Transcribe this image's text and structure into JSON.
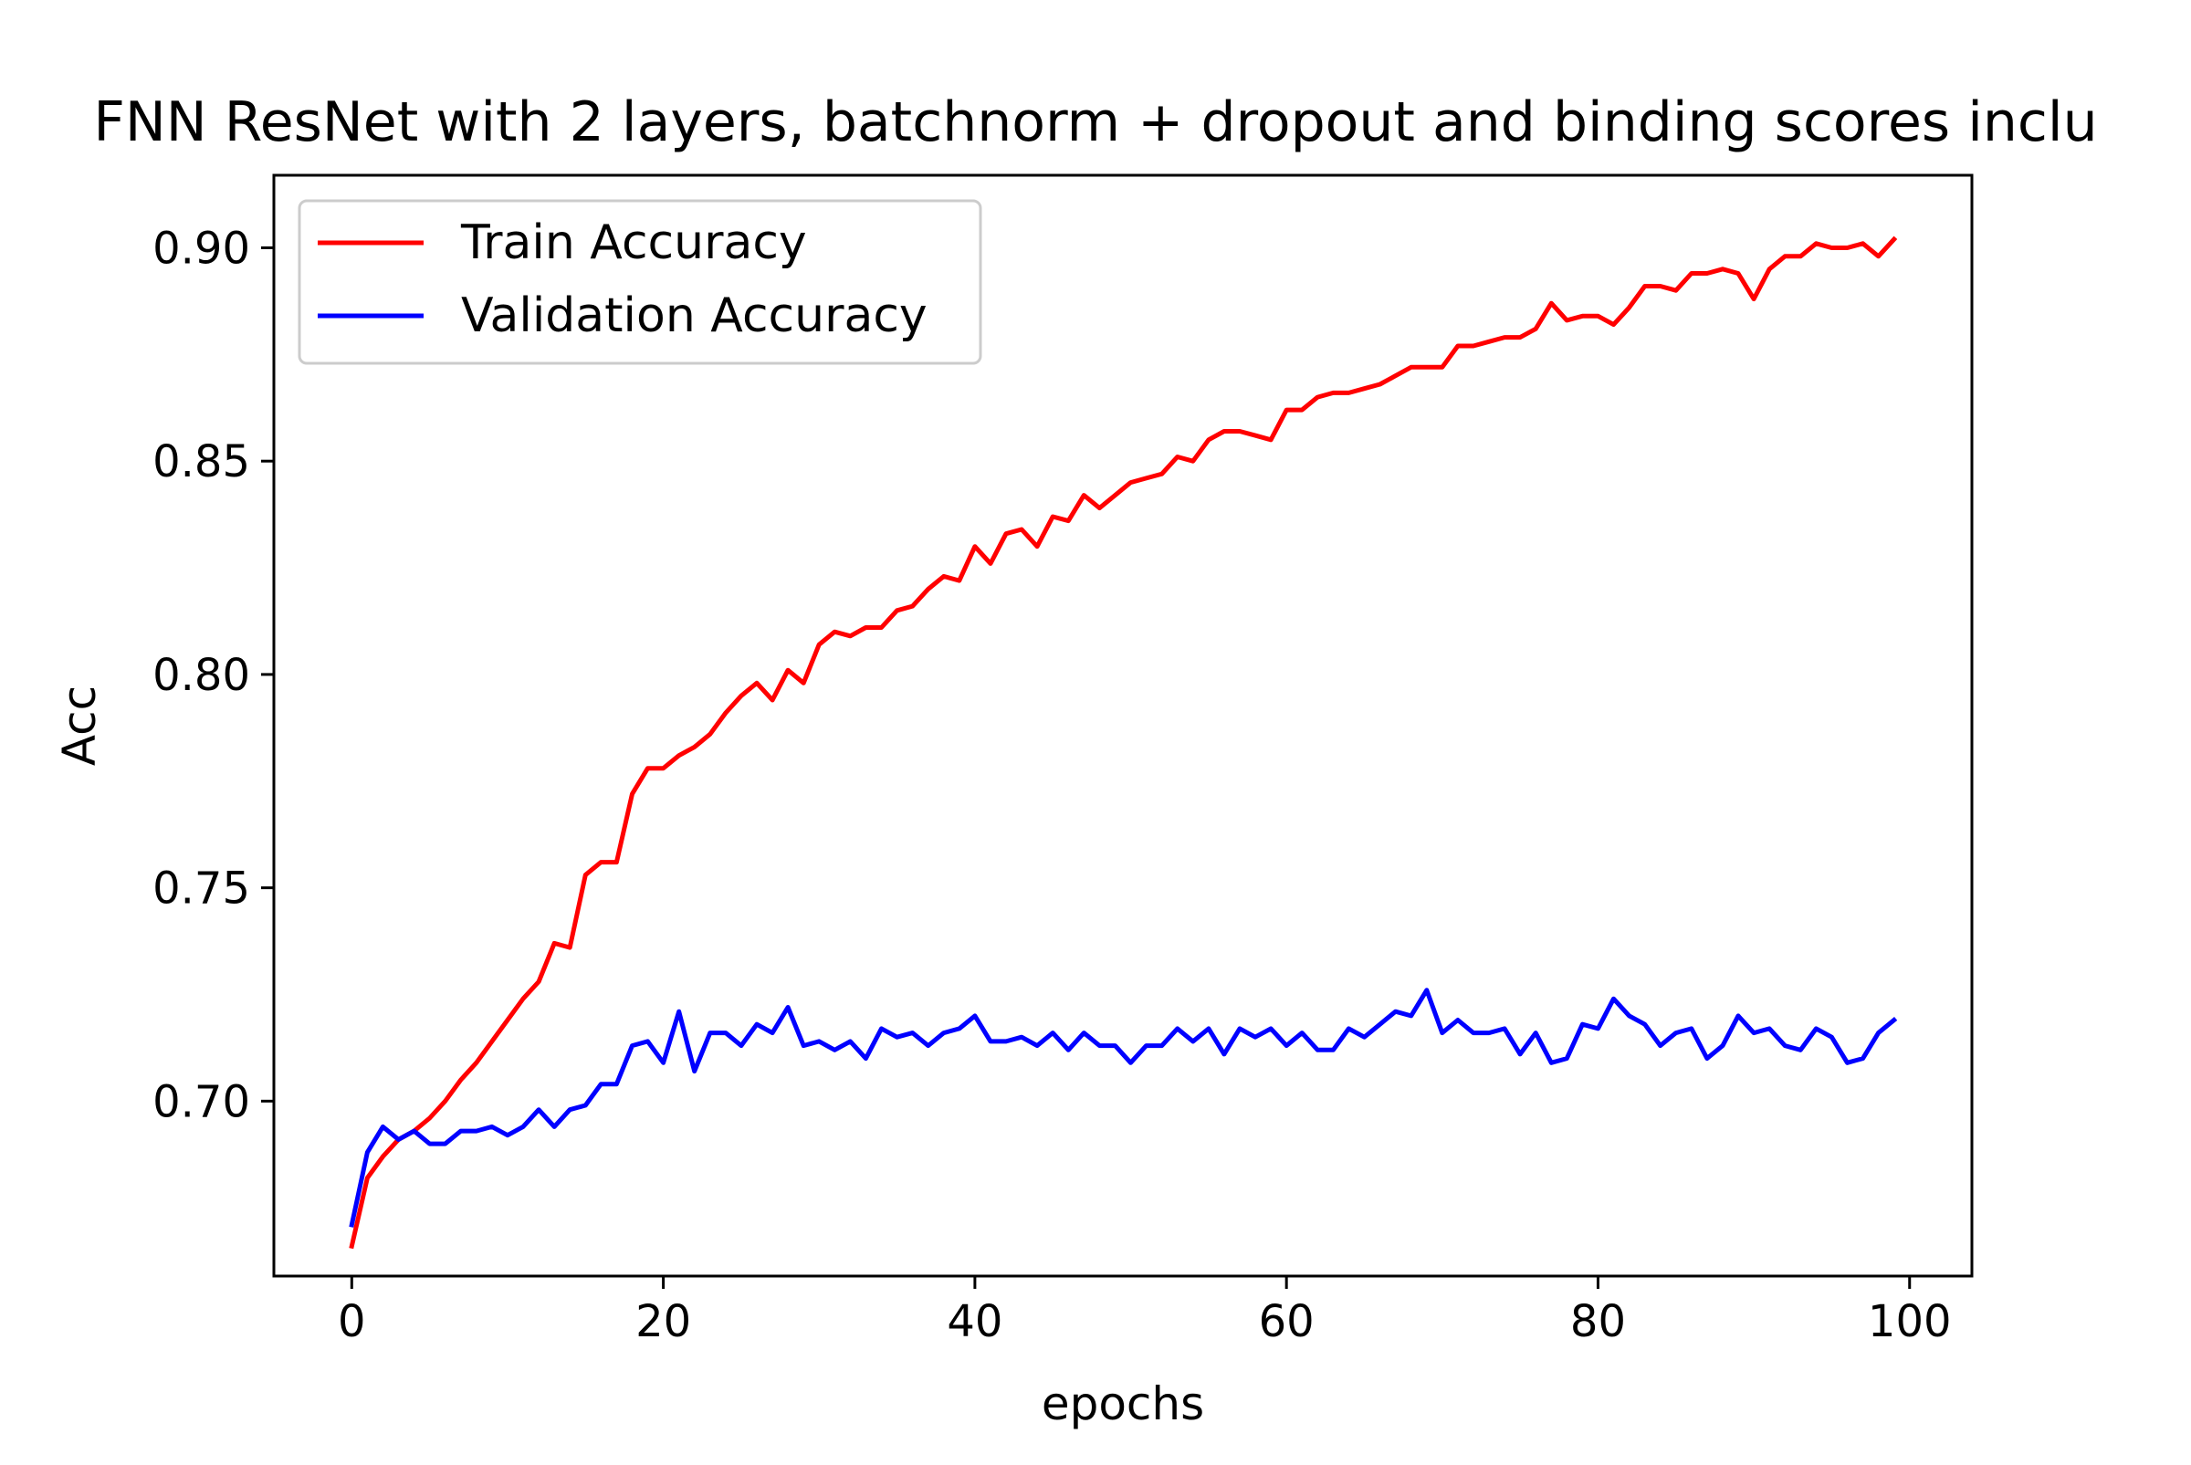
{
  "chart_data": {
    "type": "line",
    "title": "FNN ResNet with 2 layers, batchnorm + dropout and binding scores inclu",
    "xlabel": "epochs",
    "ylabel": "Acc",
    "xlim": [
      -5,
      104
    ],
    "ylim": [
      0.659,
      0.917
    ],
    "xticks": [
      0,
      20,
      40,
      60,
      80,
      100
    ],
    "xtick_labels": [
      "0",
      "20",
      "40",
      "60",
      "80",
      "100"
    ],
    "yticks": [
      0.7,
      0.75,
      0.8,
      0.85,
      0.9
    ],
    "ytick_labels": [
      "0.70",
      "0.75",
      "0.80",
      "0.85",
      "0.90"
    ],
    "grid": false,
    "legend_position": "top-left",
    "x": [
      0,
      1,
      2,
      3,
      4,
      5,
      6,
      7,
      8,
      9,
      10,
      11,
      12,
      13,
      14,
      15,
      16,
      17,
      18,
      19,
      20,
      21,
      22,
      23,
      24,
      25,
      26,
      27,
      28,
      29,
      30,
      31,
      32,
      33,
      34,
      35,
      36,
      37,
      38,
      39,
      40,
      41,
      42,
      43,
      44,
      45,
      46,
      47,
      48,
      49,
      50,
      51,
      52,
      53,
      54,
      55,
      56,
      57,
      58,
      59,
      60,
      61,
      62,
      63,
      64,
      65,
      66,
      67,
      68,
      69,
      70,
      71,
      72,
      73,
      74,
      75,
      76,
      77,
      78,
      79,
      80,
      81,
      82,
      83,
      84,
      85,
      86,
      87,
      88,
      89,
      90,
      91,
      92,
      93,
      94,
      95,
      96,
      97,
      98,
      99
    ],
    "series": [
      {
        "name": "Train Accuracy",
        "color": "#ff0000",
        "values": [
          0.666,
          0.682,
          0.687,
          0.691,
          0.693,
          0.696,
          0.7,
          0.705,
          0.709,
          0.714,
          0.719,
          0.724,
          0.728,
          0.737,
          0.736,
          0.753,
          0.756,
          0.756,
          0.772,
          0.778,
          0.778,
          0.781,
          0.783,
          0.786,
          0.791,
          0.795,
          0.798,
          0.794,
          0.801,
          0.798,
          0.807,
          0.81,
          0.809,
          0.811,
          0.811,
          0.815,
          0.816,
          0.82,
          0.823,
          0.822,
          0.83,
          0.826,
          0.833,
          0.834,
          0.83,
          0.837,
          0.836,
          0.842,
          0.839,
          0.842,
          0.845,
          0.846,
          0.847,
          0.851,
          0.85,
          0.855,
          0.857,
          0.857,
          0.856,
          0.855,
          0.862,
          0.862,
          0.865,
          0.866,
          0.866,
          0.867,
          0.868,
          0.87,
          0.872,
          0.872,
          0.872,
          0.877,
          0.877,
          0.878,
          0.879,
          0.879,
          0.881,
          0.887,
          0.883,
          0.884,
          0.884,
          0.882,
          0.886,
          0.891,
          0.891,
          0.89,
          0.894,
          0.894,
          0.895,
          0.894,
          0.888,
          0.895,
          0.898,
          0.898,
          0.901,
          0.9,
          0.9,
          0.901,
          0.898,
          0.902
        ]
      },
      {
        "name": "Validation Accuracy",
        "color": "#0000ff",
        "values": [
          0.671,
          0.688,
          0.694,
          0.691,
          0.693,
          0.69,
          0.69,
          0.693,
          0.693,
          0.694,
          0.692,
          0.694,
          0.698,
          0.694,
          0.698,
          0.699,
          0.704,
          0.704,
          0.713,
          0.714,
          0.709,
          0.721,
          0.707,
          0.716,
          0.716,
          0.713,
          0.718,
          0.716,
          0.722,
          0.713,
          0.714,
          0.712,
          0.714,
          0.71,
          0.717,
          0.715,
          0.716,
          0.713,
          0.716,
          0.717,
          0.72,
          0.714,
          0.714,
          0.715,
          0.713,
          0.716,
          0.712,
          0.716,
          0.713,
          0.713,
          0.709,
          0.713,
          0.713,
          0.717,
          0.714,
          0.717,
          0.711,
          0.717,
          0.715,
          0.717,
          0.713,
          0.716,
          0.712,
          0.712,
          0.717,
          0.715,
          0.718,
          0.721,
          0.72,
          0.726,
          0.716,
          0.719,
          0.716,
          0.716,
          0.717,
          0.711,
          0.716,
          0.709,
          0.71,
          0.718,
          0.717,
          0.724,
          0.72,
          0.718,
          0.713,
          0.716,
          0.717,
          0.71,
          0.713,
          0.72,
          0.716,
          0.717,
          0.713,
          0.712,
          0.717,
          0.715,
          0.709,
          0.71,
          0.716,
          0.719
        ]
      }
    ]
  }
}
